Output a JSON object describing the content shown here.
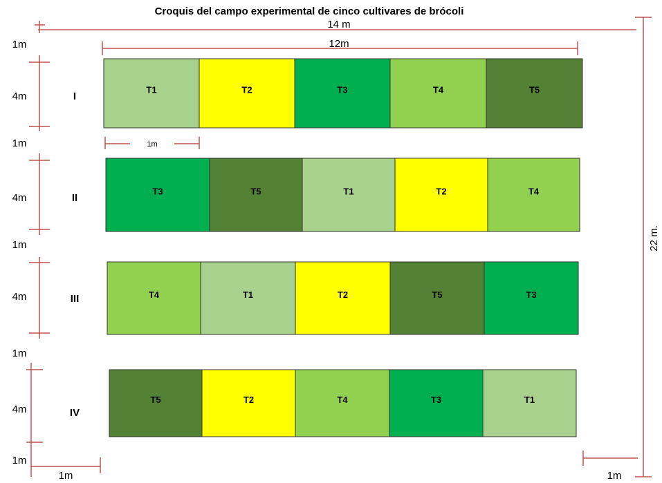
{
  "title": "Croquis del campo experimental de cinco cultivares de brócoli",
  "dimensions": {
    "total_width": "14 m",
    "plots_width": "12m",
    "total_length": "22 m.",
    "plot_width": "1m",
    "bottom_left": "1m",
    "bottom_right": "1m",
    "left_side": [
      "1m",
      "4m",
      "1m",
      "4m",
      "1m",
      "4m",
      "1m",
      "4m",
      "1m"
    ]
  },
  "blocks": [
    {
      "label": "I",
      "plots": [
        {
          "label": "T1",
          "color": "#a9d18e"
        },
        {
          "label": "T2",
          "color": "#ffff00"
        },
        {
          "label": "T3",
          "color": "#00b050"
        },
        {
          "label": "T4",
          "color": "#92d050"
        },
        {
          "label": "T5",
          "color": "#548235"
        }
      ]
    },
    {
      "label": "II",
      "plots": [
        {
          "label": "T3",
          "color": "#00b050"
        },
        {
          "label": "T5",
          "color": "#548235"
        },
        {
          "label": "T1",
          "color": "#a9d18e"
        },
        {
          "label": "T2",
          "color": "#ffff00"
        },
        {
          "label": "T4",
          "color": "#92d050"
        }
      ]
    },
    {
      "label": "III",
      "plots": [
        {
          "label": "T4",
          "color": "#92d050"
        },
        {
          "label": "T1",
          "color": "#a9d18e"
        },
        {
          "label": "T2",
          "color": "#ffff00"
        },
        {
          "label": "T5",
          "color": "#548235"
        },
        {
          "label": "T3",
          "color": "#00b050"
        }
      ]
    },
    {
      "label": "IV",
      "plots": [
        {
          "label": "T5",
          "color": "#548235"
        },
        {
          "label": "T2",
          "color": "#ffff00"
        },
        {
          "label": "T4",
          "color": "#92d050"
        },
        {
          "label": "T3",
          "color": "#00b050"
        },
        {
          "label": "T1",
          "color": "#a9d18e"
        }
      ]
    }
  ]
}
